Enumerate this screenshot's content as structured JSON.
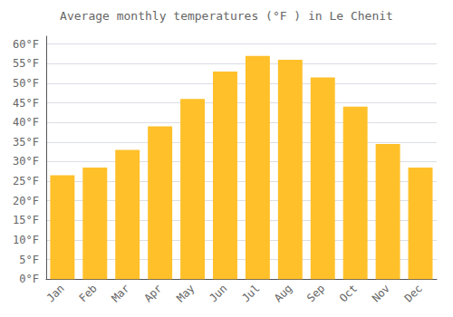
{
  "chart_data": {
    "type": "bar",
    "title": "Average monthly temperatures (°F ) in Le Chenit",
    "categories": [
      "Jan",
      "Feb",
      "Mar",
      "Apr",
      "May",
      "Jun",
      "Jul",
      "Aug",
      "Sep",
      "Oct",
      "Nov",
      "Dec"
    ],
    "values": [
      26.5,
      28.5,
      33.0,
      39.0,
      46.0,
      53.0,
      57.0,
      56.0,
      51.5,
      44.0,
      34.5,
      28.5
    ],
    "color": "#FFC02A",
    "ylim": [
      0,
      62
    ],
    "yticks": [
      {
        "value": 0,
        "label": "0°F"
      },
      {
        "value": 5,
        "label": "5°F"
      },
      {
        "value": 10,
        "label": "10°F"
      },
      {
        "value": 15,
        "label": "15°F"
      },
      {
        "value": 20,
        "label": "20°F"
      },
      {
        "value": 25,
        "label": "25°F"
      },
      {
        "value": 30,
        "label": "30°F"
      },
      {
        "value": 35,
        "label": "35°F"
      },
      {
        "value": 40,
        "label": "40°F"
      },
      {
        "value": 45,
        "label": "45°F"
      },
      {
        "value": 50,
        "label": "50°F"
      },
      {
        "value": 55,
        "label": "55°F"
      },
      {
        "value": 60,
        "label": "60°F"
      }
    ],
    "grid": true
  }
}
